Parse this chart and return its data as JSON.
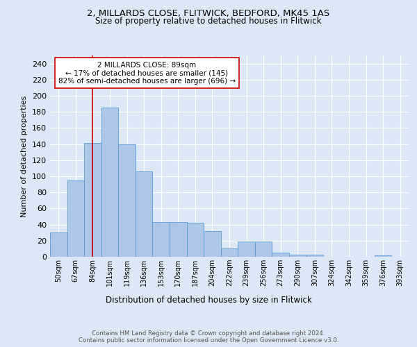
{
  "title1": "2, MILLARDS CLOSE, FLITWICK, BEDFORD, MK45 1AS",
  "title2": "Size of property relative to detached houses in Flitwick",
  "xlabel": "Distribution of detached houses by size in Flitwick",
  "ylabel": "Number of detached properties",
  "bar_labels": [
    "50sqm",
    "67sqm",
    "84sqm",
    "101sqm",
    "119sqm",
    "136sqm",
    "153sqm",
    "170sqm",
    "187sqm",
    "204sqm",
    "222sqm",
    "239sqm",
    "256sqm",
    "273sqm",
    "290sqm",
    "307sqm",
    "324sqm",
    "342sqm",
    "359sqm",
    "376sqm",
    "393sqm"
  ],
  "bar_values": [
    30,
    95,
    141,
    185,
    140,
    106,
    43,
    43,
    42,
    32,
    10,
    19,
    19,
    5,
    3,
    3,
    0,
    0,
    0,
    2,
    0
  ],
  "bar_color": "#aec6e8",
  "bar_edge_color": "#5b9bd5",
  "vline_x": 2,
  "vline_color": "#cc0000",
  "annotation_text": "2 MILLARDS CLOSE: 89sqm\n← 17% of detached houses are smaller (145)\n82% of semi-detached houses are larger (696) →",
  "annotation_box_color": "#ffffff",
  "annotation_box_edge": "#cc0000",
  "ylim": [
    0,
    250
  ],
  "yticks": [
    0,
    20,
    40,
    60,
    80,
    100,
    120,
    140,
    160,
    180,
    200,
    220,
    240
  ],
  "background_color": "#dce8f5",
  "grid_color": "#ffffff",
  "fig_facecolor": "#dce8f5",
  "footer": "Contains HM Land Registry data © Crown copyright and database right 2024.\nContains public sector information licensed under the Open Government Licence v3.0."
}
